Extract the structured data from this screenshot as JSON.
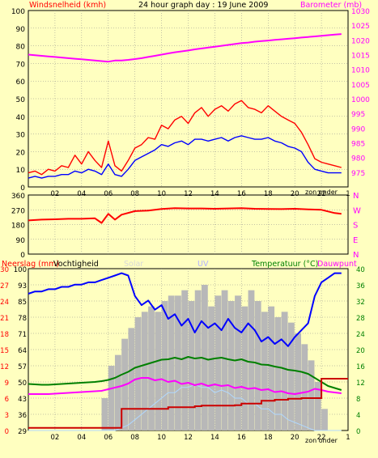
{
  "title": "24 hour graph day : 19 June 2009",
  "colors": {
    "background": "#ffffc0",
    "plot_bg": "#ffffc0",
    "grid": "#8a8a8a",
    "wind_gust": "#ff0000",
    "wind_avg": "#0000ff",
    "barometer": "#ff00ff",
    "direction": "#ff0000",
    "rain": "#cc0000",
    "humidity": "#0000ff",
    "solar": "#b8b8b8",
    "uv": "#b0d8ff",
    "temperature": "#008000",
    "dewpoint": "#ff00ff",
    "red_label": "#ff0000",
    "green_label": "#008000"
  },
  "x_ticks": [
    "02",
    "04",
    "06",
    "08",
    "10",
    "12",
    "14",
    "16",
    "18",
    "20",
    "22",
    "1"
  ],
  "x_note": "zon onder",
  "chart_data": [
    {
      "type": "line",
      "panel": "wind-barometer",
      "ylabel_left": "Windsnelheid (kmh)",
      "ylabel_right": "Barometer (mb)",
      "ylim_left": [
        0,
        100
      ],
      "ylim_right": [
        970,
        1030
      ],
      "yticks_left": [
        "100",
        "90",
        "80",
        "70",
        "60",
        "50",
        "40",
        "30",
        "20",
        "10",
        "0"
      ],
      "yticks_right": [
        "1030",
        "1025",
        "1020",
        "1015",
        "1010",
        "1005",
        "1000",
        "995",
        "990",
        "985",
        "980",
        "975"
      ],
      "x_hours": [
        0,
        0.5,
        1,
        1.5,
        2,
        2.5,
        3,
        3.5,
        4,
        4.5,
        5,
        5.5,
        6,
        6.5,
        7,
        7.5,
        8,
        8.5,
        9,
        9.5,
        10,
        10.5,
        11,
        11.5,
        12,
        12.5,
        13,
        13.5,
        14,
        14.5,
        15,
        15.5,
        16,
        16.5,
        17,
        17.5,
        18,
        18.5,
        19,
        19.5,
        20,
        20.5,
        21,
        21.5,
        22,
        22.5,
        23,
        23.5
      ],
      "series": [
        {
          "name": "gust",
          "axis": "left",
          "values": [
            8,
            9,
            7,
            10,
            9,
            12,
            11,
            18,
            13,
            20,
            15,
            11,
            26,
            12,
            9,
            15,
            22,
            24,
            28,
            27,
            35,
            33,
            38,
            40,
            36,
            42,
            45,
            40,
            44,
            46,
            43,
            47,
            49,
            45,
            44,
            42,
            46,
            43,
            40,
            38,
            36,
            31,
            24,
            16,
            14,
            13,
            12,
            11
          ]
        },
        {
          "name": "average",
          "axis": "left",
          "values": [
            5,
            6,
            5,
            6,
            6,
            7,
            7,
            9,
            8,
            10,
            9,
            7,
            13,
            7,
            6,
            10,
            15,
            17,
            19,
            21,
            24,
            23,
            25,
            26,
            24,
            27,
            27,
            26,
            27,
            28,
            26,
            28,
            29,
            28,
            27,
            27,
            28,
            26,
            25,
            23,
            22,
            20,
            14,
            10,
            9,
            8,
            8,
            8
          ]
        },
        {
          "name": "barometer",
          "axis": "right",
          "values": [
            1015,
            1014.8,
            1014.6,
            1014.4,
            1014.2,
            1014,
            1013.8,
            1013.6,
            1013.4,
            1013.2,
            1013,
            1012.8,
            1012.6,
            1013,
            1013,
            1013.2,
            1013.5,
            1013.8,
            1014.2,
            1014.6,
            1015,
            1015.4,
            1015.8,
            1016.1,
            1016.4,
            1016.8,
            1017.1,
            1017.4,
            1017.7,
            1018,
            1018.3,
            1018.6,
            1018.9,
            1019.1,
            1019.4,
            1019.6,
            1019.8,
            1020,
            1020.2,
            1020.4,
            1020.6,
            1020.8,
            1021,
            1021.2,
            1021.4,
            1021.6,
            1021.8,
            1022
          ]
        }
      ]
    },
    {
      "type": "line",
      "panel": "wind-direction",
      "ylim": [
        0,
        360
      ],
      "yticks": [
        "360",
        "270",
        "180",
        "90",
        "0"
      ],
      "compass": [
        "N",
        "W",
        "S",
        "E",
        "N"
      ],
      "x_hours": [
        0,
        1,
        2,
        3,
        4,
        5,
        5.5,
        6,
        6.5,
        7,
        8,
        9,
        10,
        11,
        12,
        13,
        14,
        15,
        16,
        17,
        18,
        19,
        20,
        21,
        22,
        23,
        23.5
      ],
      "series": [
        {
          "name": "direction",
          "values": [
            205,
            210,
            212,
            215,
            215,
            218,
            190,
            245,
            210,
            240,
            262,
            265,
            275,
            280,
            278,
            278,
            276,
            278,
            280,
            276,
            275,
            274,
            276,
            272,
            270,
            250,
            245
          ]
        }
      ]
    },
    {
      "type": "line",
      "panel": "rain-humidity-temperature",
      "ylabel_left_1": "Neerslag (mm)",
      "ylabel_left_2": "Vochtigheid",
      "ylabel_solar": "Solar",
      "ylabel_uv": "UV",
      "ylabel_right_1": "Temperatuur (°C)",
      "ylabel_right_2": "Dauwpunt",
      "yticks_rain": [
        "30",
        "27",
        "24",
        "21",
        "18",
        "15",
        "12",
        "9",
        "6",
        "3",
        "0"
      ],
      "yticks_hum": [
        "100",
        "93",
        "85",
        "78",
        "71",
        "64",
        "57",
        "50",
        "43",
        "36",
        "29"
      ],
      "yticks_temp": [
        "40",
        "36",
        "32",
        "28",
        "24",
        "20",
        "16",
        "12",
        "8",
        "4",
        "0"
      ],
      "x_hours": [
        0,
        0.5,
        1,
        1.5,
        2,
        2.5,
        3,
        3.5,
        4,
        4.5,
        5,
        5.5,
        6,
        6.5,
        7,
        7.5,
        8,
        8.5,
        9,
        9.5,
        10,
        10.5,
        11,
        11.5,
        12,
        12.5,
        13,
        13.5,
        14,
        14.5,
        15,
        15.5,
        16,
        16.5,
        17,
        17.5,
        18,
        18.5,
        19,
        19.5,
        20,
        20.5,
        21,
        21.5,
        22,
        22.5,
        23,
        23.5
      ],
      "series": [
        {
          "name": "humidity",
          "axis": "humidity",
          "values": [
            89,
            90,
            90,
            91,
            91,
            92,
            92,
            93,
            93,
            94,
            94,
            95,
            96,
            97,
            98,
            97,
            88,
            84,
            86,
            82,
            84,
            78,
            80,
            75,
            78,
            72,
            77,
            74,
            76,
            73,
            78,
            74,
            72,
            76,
            73,
            68,
            70,
            67,
            69,
            66,
            70,
            73,
            76,
            88,
            94,
            96,
            98,
            98
          ]
        },
        {
          "name": "temperature",
          "axis": "temperature",
          "values": [
            11.5,
            11.4,
            11.3,
            11.3,
            11.4,
            11.5,
            11.6,
            11.7,
            11.8,
            11.9,
            12,
            12.2,
            12.5,
            13,
            13.8,
            14.5,
            15.5,
            16,
            16.5,
            17,
            17.5,
            17.6,
            18,
            17.6,
            18.2,
            17.8,
            18,
            17.5,
            17.8,
            18,
            17.6,
            17.3,
            17.6,
            17,
            16.8,
            16.3,
            16.2,
            15.8,
            15.5,
            15,
            14.8,
            14.5,
            14,
            13,
            12,
            11,
            10.5,
            10
          ]
        },
        {
          "name": "dewpoint",
          "axis": "temperature",
          "values": [
            9,
            9,
            9,
            9,
            9.1,
            9.2,
            9.3,
            9.4,
            9.5,
            9.6,
            9.7,
            9.8,
            10.2,
            10.6,
            11,
            11.6,
            12.6,
            13,
            13,
            12.4,
            12.7,
            12,
            12.3,
            11.5,
            11.8,
            11.2,
            11.6,
            11,
            11.4,
            11,
            11.2,
            10.5,
            10.8,
            10.3,
            10.5,
            10,
            10.2,
            9.5,
            9.7,
            9.2,
            9,
            9.3,
            9.6,
            10.3,
            10,
            9.6,
            9.4,
            9.2
          ]
        },
        {
          "name": "rain",
          "axis": "rain",
          "values": [
            0.5,
            0.5,
            0.5,
            0.5,
            0.5,
            0.5,
            0.5,
            0.5,
            0.5,
            0.5,
            0.5,
            0.5,
            0.5,
            0.5,
            4,
            4,
            4,
            4,
            4,
            4,
            4,
            4.3,
            4.3,
            4.3,
            4.3,
            4.5,
            4.6,
            4.6,
            4.6,
            4.6,
            4.6,
            4.7,
            5,
            5,
            5,
            5.5,
            5.5,
            5.7,
            5.7,
            5.9,
            5.9,
            6,
            6,
            6,
            9.6,
            9.6,
            9.6,
            9.6
          ]
        },
        {
          "name": "solar",
          "axis": "rain",
          "values": [
            0,
            0,
            0,
            0,
            0,
            0,
            0,
            0,
            0,
            0,
            0,
            6,
            12,
            14,
            17,
            19,
            21,
            22,
            23,
            22,
            24,
            25,
            25,
            26,
            24,
            26,
            27,
            23,
            25,
            26,
            24,
            25,
            23,
            26,
            24,
            22,
            23,
            21,
            22,
            20,
            18,
            16,
            13,
            9,
            4,
            0,
            0,
            0
          ]
        },
        {
          "name": "uv",
          "axis": "rain",
          "values": [
            0,
            0,
            0,
            0,
            0,
            0,
            0,
            0,
            0,
            0,
            0,
            0,
            0,
            0,
            0.5,
            1,
            2,
            3,
            4,
            5,
            6,
            7,
            7,
            8,
            8,
            8.5,
            8,
            8,
            7,
            7.5,
            7,
            6,
            6,
            5,
            5,
            4,
            4,
            3,
            3,
            2,
            1.5,
            1,
            0.5,
            0,
            0,
            0,
            0,
            0
          ]
        }
      ]
    }
  ]
}
